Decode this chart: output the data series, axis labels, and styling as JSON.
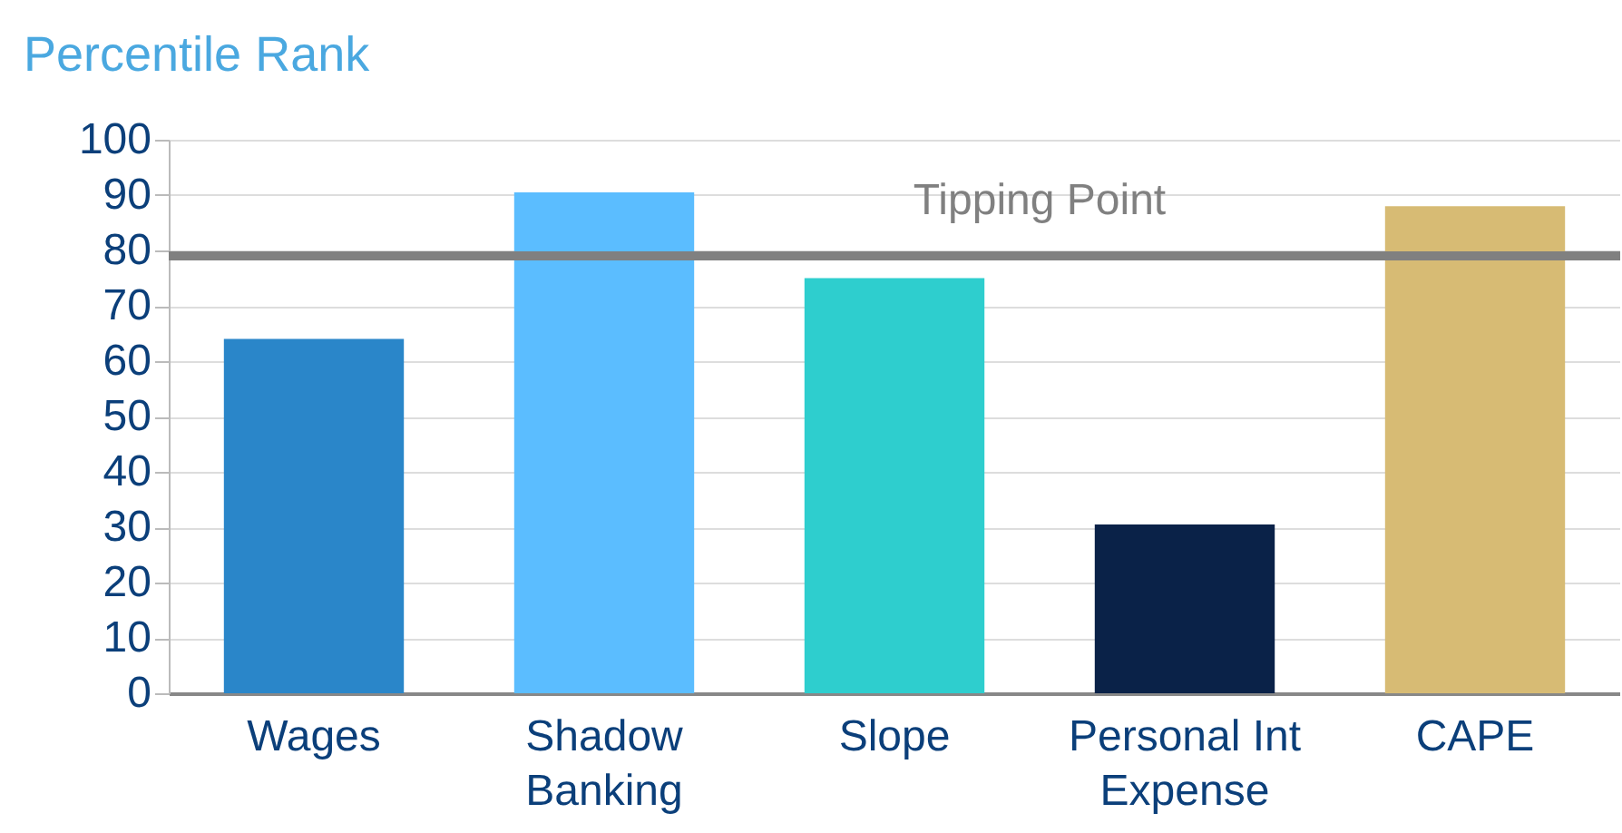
{
  "chart_data": {
    "type": "bar",
    "title": "Percentile Rank",
    "categories": [
      "Wages",
      "Shadow Banking",
      "Slope",
      "Personal Int Expense",
      "CAPE"
    ],
    "values": [
      64,
      90.5,
      75,
      30.5,
      88
    ],
    "colors": [
      "#2a86c9",
      "#5bbdff",
      "#2ecece",
      "#0a2248",
      "#d7bb74"
    ],
    "ylim": [
      0,
      100
    ],
    "yticks": [
      0,
      10,
      20,
      30,
      40,
      50,
      60,
      70,
      80,
      90,
      100
    ],
    "grid": "y",
    "ref_lines": [
      {
        "axis": "y",
        "value": 79,
        "label": "Tipping Point",
        "color": "#808080"
      }
    ]
  }
}
